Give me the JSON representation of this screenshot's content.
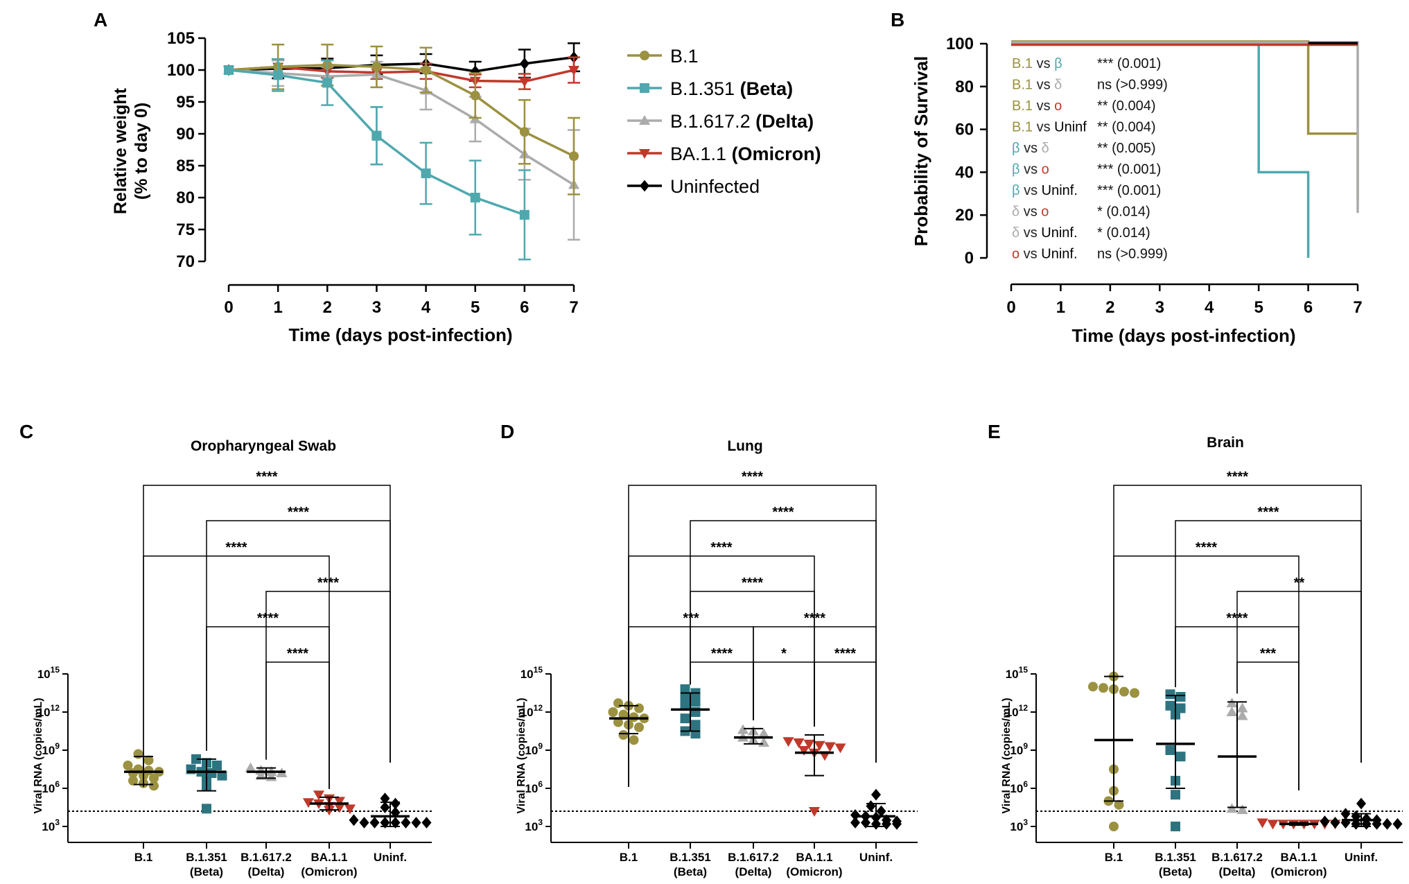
{
  "colors": {
    "b1": "#9B9140",
    "beta": "#4FA8AE",
    "beta_dark": "#2E7480",
    "delta": "#ABABAB",
    "omicron": "#C0392B",
    "uninf": "#000000",
    "axis": "#000000"
  },
  "chart_data": [
    {
      "panel": "A",
      "type": "line",
      "ylabel_line1": "Relative weight",
      "ylabel_line2": "(% to day 0)",
      "xlabel": "Time (days post-infection)",
      "x": [
        0,
        1,
        2,
        3,
        4,
        5,
        6,
        7
      ],
      "ylim": [
        70,
        105
      ],
      "xlim": [
        0,
        7
      ],
      "yticks": [
        70,
        75,
        80,
        85,
        90,
        95,
        100,
        105
      ],
      "legend": [
        {
          "key": "b1",
          "label": "B.1",
          "bold": "",
          "marker": "circle"
        },
        {
          "key": "beta",
          "label": "B.1.351 ",
          "bold": "(Beta)",
          "marker": "square"
        },
        {
          "key": "delta",
          "label": "B.1.617.2 ",
          "bold": "(Delta)",
          "marker": "triangle"
        },
        {
          "key": "omicron",
          "label": "BA.1.1 ",
          "bold": "(Omicron)",
          "marker": "triangle-down"
        },
        {
          "key": "uninf",
          "label": "Uninfected",
          "bold": "",
          "marker": "diamond"
        }
      ],
      "series": [
        {
          "name": "Uninfected",
          "key": "uninf",
          "marker": "diamond",
          "x": [
            0,
            1,
            2,
            3,
            4,
            5,
            6,
            7
          ],
          "values": [
            100,
            100.2,
            100.3,
            100.8,
            101,
            99.8,
            101,
            102
          ],
          "err": [
            0,
            1.5,
            1.5,
            1.5,
            1.5,
            1.5,
            2.2,
            2.2
          ]
        },
        {
          "name": "BA.1.1 (Omicron)",
          "key": "omicron",
          "marker": "triangle-down",
          "x": [
            0,
            1,
            2,
            3,
            4,
            5,
            6,
            7
          ],
          "values": [
            100,
            100.5,
            99.8,
            99.6,
            99.8,
            98.3,
            98.2,
            100
          ],
          "err": [
            0,
            1,
            1,
            1,
            1.2,
            1,
            1.2,
            2
          ]
        },
        {
          "name": "B.1.617.2 (Delta)",
          "key": "delta",
          "marker": "triangle",
          "x": [
            0,
            1,
            2,
            3,
            4,
            5,
            6,
            7
          ],
          "values": [
            100,
            99.5,
            99,
            99.3,
            96.8,
            92.3,
            86.8,
            82
          ],
          "err": [
            0,
            2,
            1.5,
            2,
            3,
            3.5,
            4,
            8.6
          ]
        },
        {
          "name": "B.1",
          "key": "b1",
          "marker": "circle",
          "x": [
            0,
            1,
            2,
            3,
            4,
            5,
            6,
            7
          ],
          "values": [
            100,
            100.5,
            100.8,
            100.5,
            100,
            96,
            90.3,
            86.5
          ],
          "err": [
            0,
            3.5,
            3.2,
            3.2,
            3.5,
            3.5,
            5,
            6
          ]
        },
        {
          "name": "B.1.351 (Beta)",
          "key": "beta",
          "marker": "square",
          "x": [
            0,
            1,
            2,
            3
          ],
          "values": [
            100,
            99.2,
            98,
            89.7
          ],
          "err": [
            0,
            2.5,
            3.5,
            4.5
          ]
        },
        {
          "name": "B.1.351 (Beta) cont.",
          "key": "beta",
          "marker": "square",
          "x": [
            3,
            4,
            5,
            6
          ],
          "values": [
            89.7,
            83.8,
            80,
            77.3
          ],
          "err": [
            4.5,
            4.8,
            5.8,
            7
          ]
        }
      ]
    },
    {
      "panel": "B",
      "type": "step",
      "ylabel": "Probability of Survival",
      "xlabel": "Time (days post-infection)",
      "xlim": [
        0,
        7
      ],
      "ylim": [
        0,
        100
      ],
      "yticks": [
        0,
        20,
        40,
        60,
        80,
        100
      ],
      "series": [
        {
          "name": "B.1.351 (Beta)",
          "key": "beta",
          "x": [
            0,
            5,
            5,
            6,
            6
          ],
          "values": [
            100,
            100,
            40,
            40,
            0
          ]
        },
        {
          "name": "B.1",
          "key": "b1",
          "x": [
            0,
            6,
            6,
            7,
            7
          ],
          "values": [
            101,
            101,
            58,
            58,
            27
          ]
        },
        {
          "name": "B.1.617.2 (Delta)",
          "key": "delta",
          "x": [
            0,
            7,
            7
          ],
          "values": [
            100.6,
            100.6,
            21
          ]
        },
        {
          "name": "BA.1.1 (Omicron)",
          "key": "omicron",
          "x": [
            0,
            7
          ],
          "values": [
            99.5,
            99.5
          ]
        },
        {
          "name": "Uninfected",
          "key": "uninf",
          "x": [
            6,
            7
          ],
          "values": [
            100.3,
            100.3
          ]
        }
      ],
      "comparisons": [
        {
          "a": "B.1",
          "ka": "b1",
          "b": " vs ",
          "c": "β",
          "kc": "beta",
          "p": "*** (0.001)"
        },
        {
          "a": "B.1",
          "ka": "b1",
          "b": " vs ",
          "c": "δ",
          "kc": "delta",
          "p": "ns (>0.999)"
        },
        {
          "a": "B.1",
          "ka": "b1",
          "b": " vs ",
          "c": "o",
          "kc": "omicron",
          "p": "** (0.004)"
        },
        {
          "a": "B.1",
          "ka": "b1",
          "b": " vs ",
          "c": "Uninf",
          "kc": "uninf",
          "p": "** (0.004)"
        },
        {
          "a": "β",
          "ka": "beta",
          "b": " vs ",
          "c": "δ",
          "kc": "delta",
          "p": "** (0.005)"
        },
        {
          "a": "β",
          "ka": "beta",
          "b": " vs ",
          "c": "o",
          "kc": "omicron",
          "p": "*** (0.001)"
        },
        {
          "a": "β",
          "ka": "beta",
          "b": " vs ",
          "c": "Uninf.",
          "kc": "uninf",
          "p": "*** (0.001)"
        },
        {
          "a": "δ",
          "ka": "delta",
          "b": " vs ",
          "c": "o",
          "kc": "omicron",
          "p": "* (0.014)"
        },
        {
          "a": "δ",
          "ka": "delta",
          "b": " vs ",
          "c": "Uninf.",
          "kc": "uninf",
          "p": "* (0.014)"
        },
        {
          "a": "o",
          "ka": "omicron",
          "b": " vs ",
          "c": "Uninf.",
          "kc": "uninf",
          "p": "ns (>0.999)"
        }
      ]
    },
    {
      "panel": "C",
      "type": "scatter",
      "title": "Oropharyngeal Swab",
      "ylabel": "Viral RNA (copies/mL)",
      "ylim_log10": [
        2.5,
        15
      ],
      "yticks_log10": [
        3,
        6,
        9,
        12,
        15
      ],
      "lod_log10": 4.2,
      "categories": [
        {
          "label1": "B.1",
          "label2": "",
          "key": "b1",
          "marker": "circle",
          "mean": 7.3,
          "lo": 6.3,
          "hi": 8.5,
          "points": [
            8.7,
            8.2,
            7.8,
            7.5,
            7.4,
            7.3,
            7.2,
            7.0,
            6.8,
            6.6,
            6.4,
            6.2
          ]
        },
        {
          "label1": "B.1.351",
          "label2": "(Beta)",
          "key": "beta_dark",
          "marker": "square",
          "mean": 7.3,
          "lo": 5.8,
          "hi": 8.3,
          "points": [
            8.3,
            8.0,
            7.8,
            7.5,
            7.3,
            7.2,
            7.0,
            6.8,
            6.2,
            4.4
          ]
        },
        {
          "label1": "B.1.617.2",
          "label2": "(Delta)",
          "key": "delta",
          "marker": "triangle",
          "mean": 7.3,
          "lo": 6.8,
          "hi": 7.6,
          "points": [
            7.6,
            7.4,
            7.3,
            7.2,
            7.0,
            6.9
          ]
        },
        {
          "label1": "BA.1.1",
          "label2": "(Omicron)",
          "key": "omicron",
          "marker": "triangle-down",
          "mean": 4.8,
          "lo": 4.3,
          "hi": 5.3,
          "points": [
            5.5,
            5.2,
            5.0,
            4.9,
            4.8,
            4.6,
            4.5,
            4.4,
            4.3
          ]
        },
        {
          "label1": "Uninf.",
          "label2": "",
          "key": "uninf",
          "marker": "diamond",
          "mean": 3.8,
          "lo": 3.0,
          "hi": 4.9,
          "points": [
            5.2,
            4.8,
            4.5,
            4.1,
            3.5,
            3.3,
            3.3,
            3.3,
            3.3,
            3.3,
            3.3,
            3.3
          ]
        }
      ],
      "brackets": [
        {
          "from": 0,
          "to": 4,
          "label": "****",
          "level": 5
        },
        {
          "from": 1,
          "to": 4,
          "label": "****",
          "level": 4
        },
        {
          "from": 0,
          "to": 3,
          "label": "****",
          "level": 3
        },
        {
          "from": 2,
          "to": 4,
          "label": "****",
          "level": 2
        },
        {
          "from": 1,
          "to": 3,
          "label": "****",
          "level": 1
        },
        {
          "from": 2,
          "to": 3,
          "label": "****",
          "level": 0
        }
      ]
    },
    {
      "panel": "D",
      "type": "scatter",
      "title": "Lung",
      "ylabel": "Viral RNA (copies/mL)",
      "ylim_log10": [
        2.5,
        15
      ],
      "yticks_log10": [
        3,
        6,
        9,
        12,
        15
      ],
      "lod_log10": 4.2,
      "categories": [
        {
          "label1": "B.1",
          "label2": "",
          "key": "b1",
          "marker": "circle",
          "mean": 11.5,
          "lo": 10.3,
          "hi": 12.5,
          "points": [
            12.7,
            12.5,
            12.3,
            12.0,
            11.8,
            11.6,
            11.5,
            11.2,
            11.0,
            10.8,
            10.2,
            9.8
          ]
        },
        {
          "label1": "B.1.351",
          "label2": "(Beta)",
          "key": "beta_dark",
          "marker": "square",
          "mean": 12.2,
          "lo": 10.5,
          "hi": 13.5,
          "points": [
            13.8,
            13.5,
            13.2,
            12.8,
            12.5,
            12.0,
            11.5,
            11.0,
            10.5,
            10.3
          ]
        },
        {
          "label1": "B.1.617.2",
          "label2": "(Delta)",
          "key": "delta",
          "marker": "triangle",
          "mean": 10.0,
          "lo": 9.5,
          "hi": 10.7,
          "points": [
            10.6,
            10.5,
            10.3,
            10.0,
            9.8,
            9.6
          ]
        },
        {
          "label1": "BA.1.1",
          "label2": "(Omicron)",
          "key": "omicron",
          "marker": "triangle-down",
          "mean": 8.8,
          "lo": 7.0,
          "hi": 10.2,
          "points": [
            9.7,
            9.6,
            9.5,
            9.4,
            9.3,
            9.2,
            9.0,
            8.8,
            8.6,
            4.2
          ]
        },
        {
          "label1": "Uninf.",
          "label2": "",
          "key": "uninf",
          "marker": "diamond",
          "mean": 3.8,
          "lo": 3.0,
          "hi": 4.8,
          "points": [
            5.5,
            4.6,
            4.2,
            3.9,
            3.8,
            3.7,
            3.5,
            3.4,
            3.3,
            3.3,
            3.2,
            3.2,
            3.2
          ]
        }
      ],
      "brackets": [
        {
          "from": 0,
          "to": 4,
          "label": "****",
          "level": 5
        },
        {
          "from": 1,
          "to": 4,
          "label": "****",
          "level": 4
        },
        {
          "from": 0,
          "to": 3,
          "label": "****",
          "level": 3
        },
        {
          "from": 1,
          "to": 3,
          "label": "****",
          "level": 2
        },
        {
          "from": 0,
          "to": 2,
          "label": "***",
          "level": 1
        },
        {
          "from": 2,
          "to": 4,
          "label": "****",
          "level": 1
        },
        {
          "from": 1,
          "to": 2,
          "label": "****",
          "level": 0
        },
        {
          "from": 2,
          "to": 3,
          "label": "*",
          "level": 0
        },
        {
          "from": 3,
          "to": 4,
          "label": "****",
          "level": 0
        }
      ]
    },
    {
      "panel": "E",
      "type": "scatter",
      "title": "Brain",
      "ylabel": "Viral RNA (copies/mL)",
      "ylim_log10": [
        2.5,
        15
      ],
      "yticks_log10": [
        3,
        6,
        9,
        12,
        15
      ],
      "lod_log10": 4.2,
      "categories": [
        {
          "label1": "B.1",
          "label2": "",
          "key": "b1",
          "marker": "circle",
          "mean": 9.8,
          "lo": 5.0,
          "hi": 14.8,
          "points": [
            14.8,
            14.0,
            13.9,
            13.8,
            13.6,
            13.5,
            7.5,
            5.8,
            5.0,
            4.7,
            3.0
          ]
        },
        {
          "label1": "B.1.351",
          "label2": "(Beta)",
          "key": "beta_dark",
          "marker": "square",
          "mean": 9.5,
          "lo": 6.0,
          "hi": 13.3,
          "points": [
            13.4,
            13.2,
            12.5,
            12.3,
            11.8,
            9.0,
            8.5,
            6.6,
            5.5,
            3.0
          ]
        },
        {
          "label1": "B.1.617.2",
          "label2": "(Delta)",
          "key": "delta",
          "marker": "triangle",
          "mean": 8.5,
          "lo": 4.5,
          "hi": 12.8,
          "points": [
            12.7,
            12.3,
            12.0,
            11.7,
            4.4,
            4.3
          ]
        },
        {
          "label1": "BA.1.1",
          "label2": "(Omicron)",
          "key": "omicron",
          "marker": "triangle-down",
          "mean": 3.2,
          "lo": 3.1,
          "hi": 3.3,
          "points": [
            3.3,
            3.2,
            3.2,
            3.2,
            3.2,
            3.2,
            3.2,
            3.2
          ]
        },
        {
          "label1": "Uninf.",
          "label2": "",
          "key": "uninf",
          "marker": "diamond",
          "mean": 3.5,
          "lo": 3.0,
          "hi": 4.0,
          "points": [
            4.8,
            4.0,
            3.8,
            3.6,
            3.5,
            3.4,
            3.3,
            3.3,
            3.2,
            3.2,
            3.2,
            3.2,
            3.2
          ]
        }
      ],
      "brackets": [
        {
          "from": 0,
          "to": 4,
          "label": "****",
          "level": 5
        },
        {
          "from": 1,
          "to": 4,
          "label": "****",
          "level": 4
        },
        {
          "from": 0,
          "to": 3,
          "label": "****",
          "level": 3
        },
        {
          "from": 2,
          "to": 4,
          "label": "**",
          "level": 2
        },
        {
          "from": 1,
          "to": 3,
          "label": "****",
          "level": 1
        },
        {
          "from": 2,
          "to": 3,
          "label": "***",
          "level": 0
        }
      ]
    }
  ]
}
